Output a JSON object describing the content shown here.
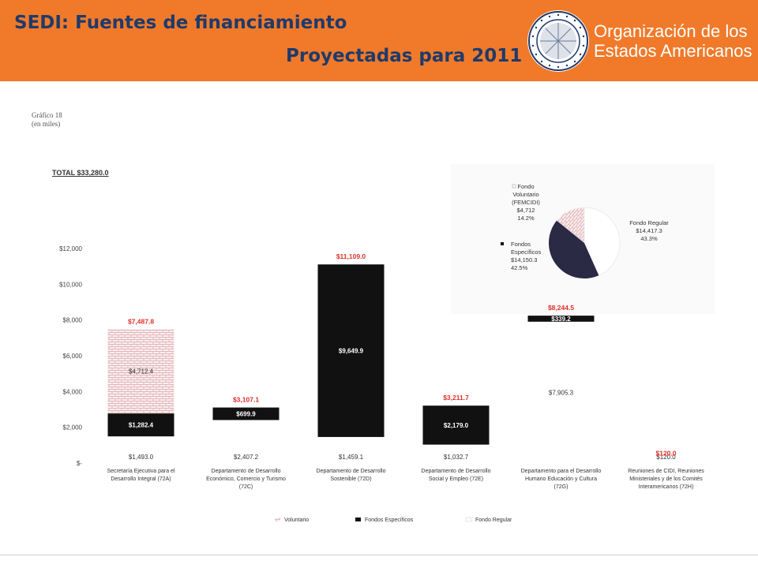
{
  "header": {
    "title_line1": "SEDI:  Fuentes de financiamiento",
    "title_line2": "Proyectadas para 2011",
    "org_name_line1": "Organización de los",
    "org_name_line2": "Estados Americanos",
    "seal_icon": "oas-seal-icon",
    "banner_color": "#f07a2a",
    "title_color": "#1f3a6b"
  },
  "chart_meta": {
    "grafico_label": "Gráfico 18",
    "units_label": "(en miles)",
    "total_label": "TOTAL   $33,280.0"
  },
  "chart_data": [
    {
      "type": "bar",
      "stacked": true,
      "categories": [
        [
          "Secretaría Ejecutiva para el",
          "Desarrollo Integral (72A)"
        ],
        [
          "Departamento de Desarrollo",
          "Económico, Comercio y Turismo",
          "(72C)"
        ],
        [
          "Departamento de Desarrollo",
          "Sostenible (72D)"
        ],
        [
          "Departamento de Desarrollo",
          "Social y Empleo (72E)"
        ],
        [
          "Departamento para el Desarrollo",
          "Humano Educación y Cultura",
          "(72G)"
        ],
        [
          "Reuniones de CIDI, Reuniones",
          "Ministeriales y de los Comités",
          "Interamericanos (72H)"
        ]
      ],
      "series": [
        {
          "name": "Fondo Regular",
          "values": [
            1493.0,
            2407.2,
            1459.1,
            1032.7,
            7905.3,
            120.0
          ],
          "labels": [
            "$1,493.0",
            "$2,407.2",
            "$1,459.1",
            "$1,032.7",
            "$7,905.3",
            "$120.0"
          ],
          "color": "#ffffff"
        },
        {
          "name": "Fondos Específicos",
          "values": [
            1282.4,
            699.9,
            9649.9,
            2179.0,
            339.2,
            0
          ],
          "labels": [
            "$1,282.4",
            "$699.9",
            "$9,649.9",
            "$2,179.0",
            "$339.2",
            ""
          ],
          "color": "#111111"
        },
        {
          "name": "Voluntario",
          "values": [
            4712.4,
            0,
            0,
            0,
            0,
            0
          ],
          "labels": [
            "$4,712.4",
            "",
            "",
            "",
            "",
            ""
          ],
          "color": "#e8c9cc"
        }
      ],
      "totals": [
        "$7,487.8",
        "$3,107.1",
        "$11,109.0",
        "$3,211.7",
        "$8,244.5",
        "$120.0"
      ],
      "total_color": "#e0302a",
      "y_ticks": [
        "$-",
        "$2,000",
        "$4,000",
        "$6,000",
        "$8,000",
        "$10,000",
        "$12,000"
      ],
      "ylim": [
        0,
        12000
      ],
      "legend": [
        "Voluntario",
        "Fondos Específicos",
        "Fondo Regular"
      ],
      "legend_placement": "bottom"
    },
    {
      "type": "pie",
      "slices": [
        {
          "name_lines": [
            "Fondo Regular"
          ],
          "value_label": "$14,417.3",
          "percent_label": "43.3%",
          "value": 14417.3,
          "color": "#ffffff"
        },
        {
          "name_lines": [
            "Fondos",
            "Específicos"
          ],
          "value_label": "$14,150.3",
          "percent_label": "42.5%",
          "value": 14150.3,
          "color": "#2b2a45"
        },
        {
          "name_lines": [
            "Fondo",
            "Voluntario",
            "(FEMCIDI)"
          ],
          "value_label": "$4,712",
          "percent_label": "14.2%",
          "value": 4712,
          "color": "#e8c9cc"
        }
      ]
    }
  ]
}
